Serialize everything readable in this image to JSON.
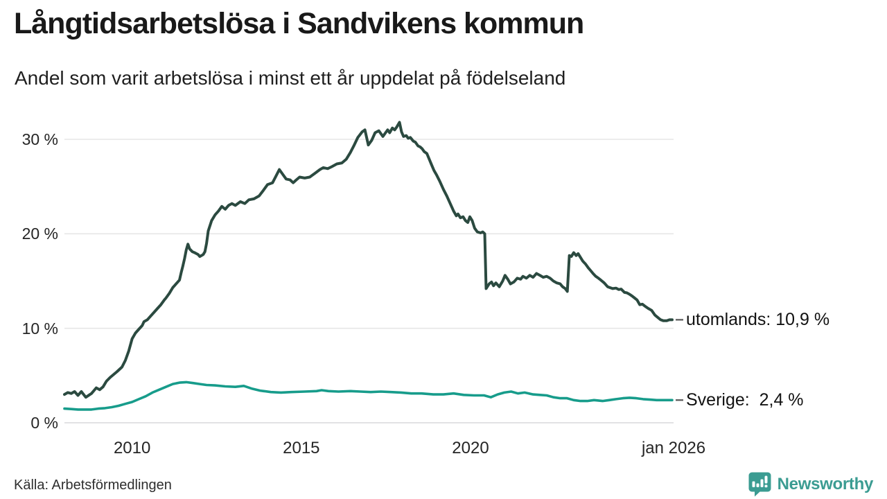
{
  "header": {
    "title": "Långtidsarbetslösa i Sandvikens kommun",
    "subtitle": "Andel som varit arbetslösa i minst ett år uppdelat på födelseland"
  },
  "footer": {
    "source": "Källa: Arbetsförmedlingen",
    "brand_name": "Newsworthy",
    "brand_color": "#3b9c92",
    "brand_icon": "bar-chart-speech-bubble-icon"
  },
  "colors": {
    "background": "#ffffff",
    "title_text": "#191919",
    "axis_text": "#252525",
    "gridline": "#e6e6e6",
    "baseline": "#d8d8dc",
    "end_label_dash": "#555555",
    "series_utomlands": "#2b4a40",
    "series_sverige": "#179c8b"
  },
  "chart_data": {
    "type": "line",
    "title": "Långtidsarbetslösa i Sandvikens kommun",
    "subtitle": "Andel som varit arbetslösa i minst ett år uppdelat på födelseland",
    "x_unit": "decimal_year",
    "x_range": [
      2008.0,
      2026.0
    ],
    "ylim": [
      0,
      33
    ],
    "grid": "horizontal",
    "legend_position": "end-of-line-labels",
    "y_ticks": [
      {
        "value": 0,
        "label": "0 %"
      },
      {
        "value": 10,
        "label": "10 %"
      },
      {
        "value": 20,
        "label": "20 %"
      },
      {
        "value": 30,
        "label": "30 %"
      }
    ],
    "x_ticks": [
      {
        "value": 2010,
        "label": "2010"
      },
      {
        "value": 2015,
        "label": "2015"
      },
      {
        "value": 2020,
        "label": "2020"
      },
      {
        "value": 2026,
        "label": "jan 2026"
      }
    ],
    "series": [
      {
        "name": "utomlands",
        "end_label": "utomlands: 10,9 %",
        "end_value": "10,9 %",
        "color": "#2b4a40",
        "stroke_width": 4,
        "points": [
          [
            2008.0,
            3.0
          ],
          [
            2008.1,
            3.2
          ],
          [
            2008.2,
            3.1
          ],
          [
            2008.3,
            3.3
          ],
          [
            2008.4,
            2.9
          ],
          [
            2008.5,
            3.3
          ],
          [
            2008.63,
            2.7
          ],
          [
            2008.8,
            3.1
          ],
          [
            2008.94,
            3.7
          ],
          [
            2009.04,
            3.5
          ],
          [
            2009.14,
            3.8
          ],
          [
            2009.24,
            4.4
          ],
          [
            2009.35,
            4.8
          ],
          [
            2009.45,
            5.1
          ],
          [
            2009.55,
            5.4
          ],
          [
            2009.7,
            5.9
          ],
          [
            2009.8,
            6.6
          ],
          [
            2009.9,
            7.6
          ],
          [
            2010.0,
            8.9
          ],
          [
            2010.1,
            9.5
          ],
          [
            2010.2,
            9.9
          ],
          [
            2010.3,
            10.3
          ],
          [
            2010.35,
            10.7
          ],
          [
            2010.45,
            10.9
          ],
          [
            2010.55,
            11.3
          ],
          [
            2010.65,
            11.7
          ],
          [
            2010.75,
            12.1
          ],
          [
            2010.85,
            12.5
          ],
          [
            2010.95,
            13.0
          ],
          [
            2011.0,
            13.2
          ],
          [
            2011.1,
            13.7
          ],
          [
            2011.2,
            14.3
          ],
          [
            2011.25,
            14.5
          ],
          [
            2011.3,
            14.7
          ],
          [
            2011.4,
            15.1
          ],
          [
            2011.45,
            15.9
          ],
          [
            2011.5,
            16.6
          ],
          [
            2011.55,
            17.4
          ],
          [
            2011.6,
            18.3
          ],
          [
            2011.65,
            18.9
          ],
          [
            2011.7,
            18.4
          ],
          [
            2011.78,
            18.1
          ],
          [
            2011.85,
            18.0
          ],
          [
            2011.95,
            17.8
          ],
          [
            2012.0,
            17.6
          ],
          [
            2012.1,
            17.8
          ],
          [
            2012.15,
            18.1
          ],
          [
            2012.2,
            19.0
          ],
          [
            2012.25,
            20.3
          ],
          [
            2012.35,
            21.4
          ],
          [
            2012.45,
            22.0
          ],
          [
            2012.55,
            22.4
          ],
          [
            2012.65,
            22.9
          ],
          [
            2012.75,
            22.6
          ],
          [
            2012.85,
            23.0
          ],
          [
            2012.95,
            23.2
          ],
          [
            2013.05,
            23.0
          ],
          [
            2013.2,
            23.4
          ],
          [
            2013.33,
            23.2
          ],
          [
            2013.45,
            23.6
          ],
          [
            2013.6,
            23.7
          ],
          [
            2013.75,
            24.0
          ],
          [
            2013.88,
            24.6
          ],
          [
            2014.0,
            25.2
          ],
          [
            2014.15,
            25.4
          ],
          [
            2014.25,
            26.1
          ],
          [
            2014.35,
            26.8
          ],
          [
            2014.45,
            26.3
          ],
          [
            2014.55,
            25.8
          ],
          [
            2014.67,
            25.7
          ],
          [
            2014.76,
            25.4
          ],
          [
            2014.85,
            25.7
          ],
          [
            2014.95,
            26.0
          ],
          [
            2015.1,
            25.9
          ],
          [
            2015.25,
            26.0
          ],
          [
            2015.4,
            26.4
          ],
          [
            2015.55,
            26.8
          ],
          [
            2015.65,
            27.0
          ],
          [
            2015.78,
            26.9
          ],
          [
            2015.9,
            27.1
          ],
          [
            2016.05,
            27.4
          ],
          [
            2016.2,
            27.5
          ],
          [
            2016.33,
            27.9
          ],
          [
            2016.45,
            28.6
          ],
          [
            2016.55,
            29.3
          ],
          [
            2016.67,
            30.2
          ],
          [
            2016.8,
            30.8
          ],
          [
            2016.88,
            31.0
          ],
          [
            2016.98,
            29.4
          ],
          [
            2017.08,
            29.9
          ],
          [
            2017.18,
            30.7
          ],
          [
            2017.29,
            30.9
          ],
          [
            2017.41,
            30.3
          ],
          [
            2017.49,
            30.7
          ],
          [
            2017.55,
            31.0
          ],
          [
            2017.61,
            30.7
          ],
          [
            2017.69,
            31.2
          ],
          [
            2017.76,
            31.0
          ],
          [
            2017.82,
            31.3
          ],
          [
            2017.9,
            31.8
          ],
          [
            2017.96,
            30.8
          ],
          [
            2018.02,
            30.3
          ],
          [
            2018.1,
            30.4
          ],
          [
            2018.16,
            30.1
          ],
          [
            2018.22,
            30.2
          ],
          [
            2018.31,
            29.8
          ],
          [
            2018.37,
            29.7
          ],
          [
            2018.45,
            29.3
          ],
          [
            2018.51,
            29.2
          ],
          [
            2018.57,
            29.0
          ],
          [
            2018.63,
            28.7
          ],
          [
            2018.71,
            28.5
          ],
          [
            2018.78,
            27.9
          ],
          [
            2018.85,
            27.3
          ],
          [
            2018.92,
            26.7
          ],
          [
            2019.0,
            26.2
          ],
          [
            2019.1,
            25.5
          ],
          [
            2019.2,
            24.7
          ],
          [
            2019.3,
            24.0
          ],
          [
            2019.4,
            23.2
          ],
          [
            2019.5,
            22.4
          ],
          [
            2019.58,
            21.9
          ],
          [
            2019.63,
            22.1
          ],
          [
            2019.7,
            21.7
          ],
          [
            2019.78,
            21.8
          ],
          [
            2019.85,
            21.4
          ],
          [
            2019.92,
            21.2
          ],
          [
            2019.98,
            21.8
          ],
          [
            2020.05,
            21.4
          ],
          [
            2020.12,
            20.6
          ],
          [
            2020.2,
            20.2
          ],
          [
            2020.3,
            20.1
          ],
          [
            2020.36,
            20.2
          ],
          [
            2020.42,
            20.0
          ],
          [
            2020.46,
            14.2
          ],
          [
            2020.55,
            14.7
          ],
          [
            2020.62,
            14.9
          ],
          [
            2020.68,
            14.5
          ],
          [
            2020.75,
            14.8
          ],
          [
            2020.85,
            14.4
          ],
          [
            2020.95,
            15.0
          ],
          [
            2021.02,
            15.6
          ],
          [
            2021.1,
            15.2
          ],
          [
            2021.18,
            14.7
          ],
          [
            2021.28,
            14.9
          ],
          [
            2021.38,
            15.3
          ],
          [
            2021.48,
            15.2
          ],
          [
            2021.55,
            15.5
          ],
          [
            2021.65,
            15.3
          ],
          [
            2021.75,
            15.6
          ],
          [
            2021.85,
            15.4
          ],
          [
            2021.95,
            15.8
          ],
          [
            2022.05,
            15.6
          ],
          [
            2022.15,
            15.4
          ],
          [
            2022.25,
            15.5
          ],
          [
            2022.35,
            15.3
          ],
          [
            2022.45,
            15.0
          ],
          [
            2022.55,
            14.8
          ],
          [
            2022.65,
            14.7
          ],
          [
            2022.72,
            14.4
          ],
          [
            2022.8,
            14.2
          ],
          [
            2022.86,
            13.9
          ],
          [
            2022.92,
            17.7
          ],
          [
            2022.98,
            17.6
          ],
          [
            2023.05,
            18.0
          ],
          [
            2023.12,
            17.7
          ],
          [
            2023.18,
            17.9
          ],
          [
            2023.25,
            17.5
          ],
          [
            2023.32,
            17.1
          ],
          [
            2023.4,
            16.8
          ],
          [
            2023.48,
            16.4
          ],
          [
            2023.55,
            16.1
          ],
          [
            2023.62,
            15.8
          ],
          [
            2023.7,
            15.5
          ],
          [
            2023.78,
            15.3
          ],
          [
            2023.85,
            15.1
          ],
          [
            2023.95,
            14.8
          ],
          [
            2024.05,
            14.4
          ],
          [
            2024.12,
            14.3
          ],
          [
            2024.2,
            14.2
          ],
          [
            2024.3,
            14.25
          ],
          [
            2024.38,
            14.1
          ],
          [
            2024.45,
            14.15
          ],
          [
            2024.55,
            13.8
          ],
          [
            2024.62,
            13.75
          ],
          [
            2024.7,
            13.6
          ],
          [
            2024.78,
            13.4
          ],
          [
            2024.85,
            13.2
          ],
          [
            2024.92,
            13.0
          ],
          [
            2025.0,
            12.5
          ],
          [
            2025.08,
            12.55
          ],
          [
            2025.15,
            12.35
          ],
          [
            2025.25,
            12.1
          ],
          [
            2025.35,
            11.9
          ],
          [
            2025.45,
            11.4
          ],
          [
            2025.55,
            11.1
          ],
          [
            2025.62,
            10.9
          ],
          [
            2025.7,
            10.8
          ],
          [
            2025.8,
            10.8
          ],
          [
            2025.88,
            10.9
          ],
          [
            2025.96,
            10.9
          ]
        ]
      },
      {
        "name": "Sverige",
        "end_label": "Sverige:  2,4 %",
        "end_value": "2,4 %",
        "color": "#179c8b",
        "stroke_width": 3.6,
        "points": [
          [
            2008.0,
            1.5
          ],
          [
            2008.2,
            1.45
          ],
          [
            2008.4,
            1.4
          ],
          [
            2008.6,
            1.4
          ],
          [
            2008.8,
            1.4
          ],
          [
            2009.0,
            1.5
          ],
          [
            2009.2,
            1.55
          ],
          [
            2009.4,
            1.65
          ],
          [
            2009.6,
            1.8
          ],
          [
            2009.8,
            2.0
          ],
          [
            2010.0,
            2.2
          ],
          [
            2010.2,
            2.5
          ],
          [
            2010.4,
            2.8
          ],
          [
            2010.6,
            3.2
          ],
          [
            2010.8,
            3.5
          ],
          [
            2011.0,
            3.8
          ],
          [
            2011.2,
            4.1
          ],
          [
            2011.4,
            4.25
          ],
          [
            2011.6,
            4.3
          ],
          [
            2011.8,
            4.2
          ],
          [
            2012.0,
            4.1
          ],
          [
            2012.2,
            4.0
          ],
          [
            2012.45,
            3.95
          ],
          [
            2012.75,
            3.85
          ],
          [
            2013.05,
            3.8
          ],
          [
            2013.3,
            3.9
          ],
          [
            2013.55,
            3.6
          ],
          [
            2013.78,
            3.4
          ],
          [
            2014.1,
            3.25
          ],
          [
            2014.4,
            3.2
          ],
          [
            2014.7,
            3.25
          ],
          [
            2015.1,
            3.3
          ],
          [
            2015.45,
            3.35
          ],
          [
            2015.6,
            3.45
          ],
          [
            2015.8,
            3.35
          ],
          [
            2016.1,
            3.3
          ],
          [
            2016.45,
            3.35
          ],
          [
            2016.75,
            3.3
          ],
          [
            2017.05,
            3.25
          ],
          [
            2017.35,
            3.3
          ],
          [
            2017.65,
            3.25
          ],
          [
            2017.95,
            3.2
          ],
          [
            2018.25,
            3.1
          ],
          [
            2018.55,
            3.1
          ],
          [
            2018.9,
            3.0
          ],
          [
            2019.2,
            3.0
          ],
          [
            2019.5,
            3.1
          ],
          [
            2019.8,
            2.95
          ],
          [
            2020.1,
            2.9
          ],
          [
            2020.4,
            2.9
          ],
          [
            2020.6,
            2.7
          ],
          [
            2020.8,
            3.0
          ],
          [
            2021.0,
            3.2
          ],
          [
            2021.2,
            3.3
          ],
          [
            2021.4,
            3.1
          ],
          [
            2021.6,
            3.2
          ],
          [
            2021.85,
            3.0
          ],
          [
            2022.05,
            2.95
          ],
          [
            2022.25,
            2.9
          ],
          [
            2022.45,
            2.7
          ],
          [
            2022.65,
            2.6
          ],
          [
            2022.85,
            2.6
          ],
          [
            2023.05,
            2.4
          ],
          [
            2023.25,
            2.3
          ],
          [
            2023.45,
            2.3
          ],
          [
            2023.65,
            2.4
          ],
          [
            2023.9,
            2.3
          ],
          [
            2024.1,
            2.4
          ],
          [
            2024.3,
            2.5
          ],
          [
            2024.5,
            2.6
          ],
          [
            2024.7,
            2.65
          ],
          [
            2024.9,
            2.6
          ],
          [
            2025.1,
            2.5
          ],
          [
            2025.3,
            2.45
          ],
          [
            2025.5,
            2.4
          ],
          [
            2025.7,
            2.4
          ],
          [
            2025.96,
            2.4
          ]
        ]
      }
    ]
  }
}
